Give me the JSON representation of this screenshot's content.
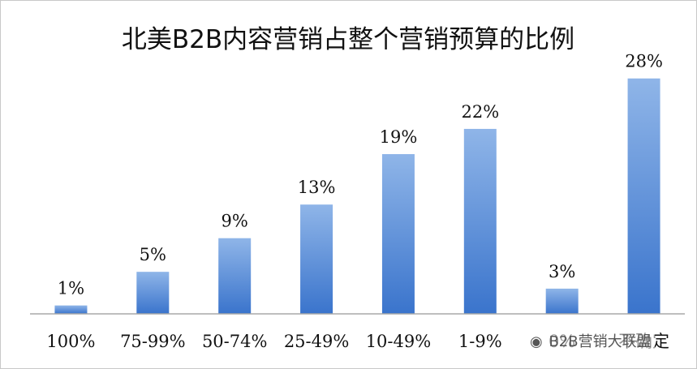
{
  "chart_data": {
    "type": "bar",
    "title": "北美B2B内容营销占整个营销预算的比例",
    "categories": [
      "100%",
      "75-99%",
      "50-74%",
      "25-49%",
      "10-49%",
      "1-9%",
      "0%",
      "不确定"
    ],
    "values": [
      1,
      5,
      9,
      13,
      19,
      22,
      3,
      28
    ],
    "value_labels": [
      "1%",
      "5%",
      "9%",
      "13%",
      "19%",
      "22%",
      "3%",
      "28%"
    ],
    "ylim": [
      0,
      30
    ],
    "xlabel": "",
    "ylabel": "",
    "grid": false,
    "bar_color_top": "#8fb5e8",
    "bar_color_bottom": "#3a74cc"
  },
  "watermark": {
    "text": "B2B营销大联盟",
    "icon": "wechat-icon"
  }
}
